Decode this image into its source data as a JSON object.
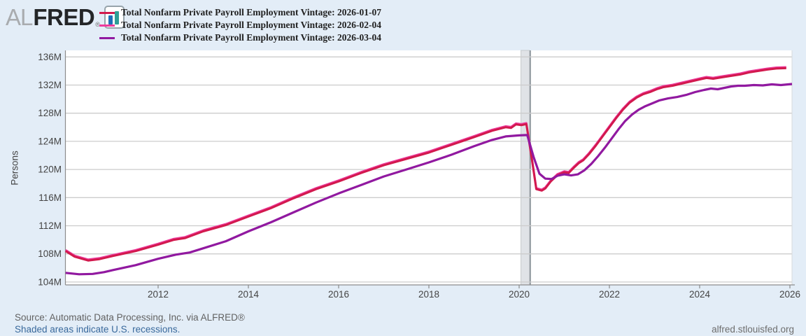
{
  "logo": {
    "al": "AL",
    "fred": "FRED",
    "registered": "®"
  },
  "legend": [
    {
      "label": "Total Nonfarm Private Payroll Employment Vintage: 2026-01-07",
      "color": "#d2194d"
    },
    {
      "label": "Total Nonfarm Private Payroll Employment Vintage: 2026-02-04",
      "color": "#ee3a9c"
    },
    {
      "label": "Total Nonfarm Private Payroll Employment Vintage: 2026-03-04",
      "color": "#9119a0"
    }
  ],
  "footer": {
    "source": "Source: Automatic Data Processing, Inc. via ALFRED®",
    "recession_note": "Shaded areas indicate U.S. recessions.",
    "site": "alfred.stlouisfed.org"
  },
  "colors": {
    "background": "#e3edf7",
    "plot_background": "#ffffff",
    "gridline": "#cccccc",
    "axis": "#8c8c8c",
    "tick_text": "#444444",
    "recession_fill": "#e0e3e7",
    "recession_edge": "#90989e"
  },
  "chart_data": {
    "type": "line",
    "title": "",
    "ylabel": "Persons",
    "xlabel": "",
    "ylim": [
      104,
      136
    ],
    "xlim": [
      2009.95,
      2026.05
    ],
    "grid": "horizontal",
    "legend_position": "top",
    "x_ticks": [
      2012,
      2014,
      2016,
      2018,
      2020,
      2022,
      2024,
      2026
    ],
    "y_ticks": [
      {
        "value": 104,
        "label": "104M"
      },
      {
        "value": 108,
        "label": "108M"
      },
      {
        "value": 112,
        "label": "112M"
      },
      {
        "value": 116,
        "label": "116M"
      },
      {
        "value": 120,
        "label": "120M"
      },
      {
        "value": 124,
        "label": "124M"
      },
      {
        "value": 128,
        "label": "128M"
      },
      {
        "value": 132,
        "label": "132M"
      },
      {
        "value": 136,
        "label": "136M"
      }
    ],
    "recessions": [
      {
        "start": 2020.04,
        "end": 2020.23
      }
    ],
    "series": [
      {
        "name": "Total Nonfarm Private Payroll Employment Vintage: 2026-01-07",
        "color": "#d2194d",
        "unit": "millions of persons",
        "points": [
          [
            2009.95,
            108.4
          ],
          [
            2010.15,
            107.6
          ],
          [
            2010.45,
            107.05
          ],
          [
            2010.7,
            107.25
          ],
          [
            2011.0,
            107.7
          ],
          [
            2011.5,
            108.4
          ],
          [
            2012.0,
            109.3
          ],
          [
            2012.35,
            110.0
          ],
          [
            2012.6,
            110.25
          ],
          [
            2013.0,
            111.2
          ],
          [
            2013.5,
            112.1
          ],
          [
            2014.0,
            113.3
          ],
          [
            2014.5,
            114.5
          ],
          [
            2015.0,
            115.9
          ],
          [
            2015.5,
            117.2
          ],
          [
            2016.0,
            118.3
          ],
          [
            2016.5,
            119.5
          ],
          [
            2017.0,
            120.6
          ],
          [
            2017.5,
            121.5
          ],
          [
            2018.0,
            122.4
          ],
          [
            2018.5,
            123.5
          ],
          [
            2019.0,
            124.6
          ],
          [
            2019.4,
            125.5
          ],
          [
            2019.7,
            126.0
          ],
          [
            2019.82,
            125.9
          ],
          [
            2019.93,
            126.4
          ],
          [
            2020.05,
            126.3
          ],
          [
            2020.16,
            126.45
          ],
          [
            2020.28,
            121.5
          ],
          [
            2020.38,
            117.2
          ],
          [
            2020.5,
            117.0
          ],
          [
            2020.58,
            117.3
          ],
          [
            2020.7,
            118.3
          ],
          [
            2020.85,
            119.2
          ],
          [
            2021.0,
            119.6
          ],
          [
            2021.1,
            119.5
          ],
          [
            2021.22,
            120.3
          ],
          [
            2021.32,
            120.9
          ],
          [
            2021.42,
            121.3
          ],
          [
            2021.55,
            122.2
          ],
          [
            2021.7,
            123.4
          ],
          [
            2021.85,
            124.7
          ],
          [
            2022.0,
            126.0
          ],
          [
            2022.15,
            127.3
          ],
          [
            2022.3,
            128.5
          ],
          [
            2022.45,
            129.5
          ],
          [
            2022.6,
            130.2
          ],
          [
            2022.75,
            130.7
          ],
          [
            2022.9,
            131.0
          ],
          [
            2023.05,
            131.4
          ],
          [
            2023.2,
            131.7
          ],
          [
            2023.4,
            131.9
          ],
          [
            2023.6,
            132.2
          ],
          [
            2023.8,
            132.5
          ],
          [
            2024.0,
            132.8
          ],
          [
            2024.15,
            133.0
          ],
          [
            2024.3,
            132.9
          ],
          [
            2024.5,
            133.1
          ],
          [
            2024.7,
            133.3
          ],
          [
            2024.9,
            133.5
          ],
          [
            2025.1,
            133.8
          ],
          [
            2025.3,
            134.0
          ],
          [
            2025.5,
            134.2
          ],
          [
            2025.7,
            134.35
          ],
          [
            2025.92,
            134.4
          ]
        ]
      },
      {
        "name": "Total Nonfarm Private Payroll Employment Vintage: 2026-02-04",
        "color": "#ee3a9c",
        "unit": "millions of persons",
        "overlaps_series": 0,
        "points": [
          [
            2009.95,
            108.4
          ],
          [
            2010.15,
            107.6
          ],
          [
            2010.45,
            107.05
          ],
          [
            2010.7,
            107.25
          ],
          [
            2011.0,
            107.7
          ],
          [
            2011.5,
            108.4
          ],
          [
            2012.0,
            109.3
          ],
          [
            2012.35,
            110.0
          ],
          [
            2012.6,
            110.25
          ],
          [
            2013.0,
            111.2
          ],
          [
            2013.5,
            112.1
          ],
          [
            2014.0,
            113.3
          ],
          [
            2014.5,
            114.5
          ],
          [
            2015.0,
            115.9
          ],
          [
            2015.5,
            117.2
          ],
          [
            2016.0,
            118.3
          ],
          [
            2016.5,
            119.5
          ],
          [
            2017.0,
            120.6
          ],
          [
            2017.5,
            121.5
          ],
          [
            2018.0,
            122.4
          ],
          [
            2018.5,
            123.5
          ],
          [
            2019.0,
            124.6
          ],
          [
            2019.4,
            125.5
          ],
          [
            2019.7,
            126.0
          ],
          [
            2019.82,
            125.9
          ],
          [
            2019.93,
            126.4
          ],
          [
            2020.05,
            126.3
          ],
          [
            2020.16,
            126.45
          ],
          [
            2020.28,
            121.5
          ],
          [
            2020.38,
            117.2
          ],
          [
            2020.5,
            117.0
          ],
          [
            2020.58,
            117.3
          ],
          [
            2020.7,
            118.3
          ],
          [
            2020.85,
            119.2
          ],
          [
            2021.0,
            119.6
          ],
          [
            2021.1,
            119.5
          ],
          [
            2021.22,
            120.3
          ],
          [
            2021.32,
            120.9
          ],
          [
            2021.42,
            121.3
          ],
          [
            2021.55,
            122.2
          ],
          [
            2021.7,
            123.4
          ],
          [
            2021.85,
            124.7
          ],
          [
            2022.0,
            126.0
          ],
          [
            2022.15,
            127.3
          ],
          [
            2022.3,
            128.5
          ],
          [
            2022.45,
            129.5
          ],
          [
            2022.6,
            130.2
          ],
          [
            2022.75,
            130.7
          ],
          [
            2022.9,
            131.0
          ],
          [
            2023.05,
            131.4
          ],
          [
            2023.2,
            131.7
          ],
          [
            2023.4,
            131.9
          ],
          [
            2023.6,
            132.2
          ],
          [
            2023.8,
            132.5
          ],
          [
            2024.0,
            132.8
          ],
          [
            2024.15,
            133.0
          ],
          [
            2024.3,
            132.9
          ],
          [
            2024.5,
            133.1
          ],
          [
            2024.7,
            133.3
          ],
          [
            2024.9,
            133.5
          ],
          [
            2025.1,
            133.8
          ],
          [
            2025.3,
            134.0
          ],
          [
            2025.5,
            134.2
          ],
          [
            2025.7,
            134.35
          ],
          [
            2025.92,
            134.4
          ]
        ]
      },
      {
        "name": "Total Nonfarm Private Payroll Employment Vintage: 2026-03-04",
        "color": "#9119a0",
        "unit": "millions of persons",
        "points": [
          [
            2009.95,
            105.3
          ],
          [
            2010.25,
            105.1
          ],
          [
            2010.55,
            105.15
          ],
          [
            2010.8,
            105.4
          ],
          [
            2011.0,
            105.7
          ],
          [
            2011.5,
            106.4
          ],
          [
            2012.0,
            107.3
          ],
          [
            2012.4,
            107.9
          ],
          [
            2012.7,
            108.2
          ],
          [
            2013.0,
            108.8
          ],
          [
            2013.5,
            109.8
          ],
          [
            2014.0,
            111.2
          ],
          [
            2014.5,
            112.5
          ],
          [
            2015.0,
            113.9
          ],
          [
            2015.5,
            115.3
          ],
          [
            2016.0,
            116.6
          ],
          [
            2016.5,
            117.8
          ],
          [
            2017.0,
            119.0
          ],
          [
            2017.5,
            120.0
          ],
          [
            2018.0,
            121.0
          ],
          [
            2018.5,
            122.1
          ],
          [
            2019.0,
            123.3
          ],
          [
            2019.4,
            124.2
          ],
          [
            2019.7,
            124.7
          ],
          [
            2020.0,
            124.85
          ],
          [
            2020.18,
            124.9
          ],
          [
            2020.32,
            121.8
          ],
          [
            2020.45,
            119.4
          ],
          [
            2020.58,
            118.7
          ],
          [
            2020.72,
            118.65
          ],
          [
            2020.85,
            119.1
          ],
          [
            2021.0,
            119.3
          ],
          [
            2021.15,
            119.15
          ],
          [
            2021.3,
            119.3
          ],
          [
            2021.45,
            119.9
          ],
          [
            2021.6,
            120.8
          ],
          [
            2021.75,
            121.9
          ],
          [
            2021.9,
            123.1
          ],
          [
            2022.05,
            124.4
          ],
          [
            2022.2,
            125.7
          ],
          [
            2022.35,
            126.9
          ],
          [
            2022.5,
            127.8
          ],
          [
            2022.65,
            128.5
          ],
          [
            2022.8,
            129.0
          ],
          [
            2022.95,
            129.4
          ],
          [
            2023.1,
            129.8
          ],
          [
            2023.3,
            130.1
          ],
          [
            2023.5,
            130.3
          ],
          [
            2023.7,
            130.6
          ],
          [
            2023.9,
            131.0
          ],
          [
            2024.1,
            131.3
          ],
          [
            2024.25,
            131.5
          ],
          [
            2024.4,
            131.4
          ],
          [
            2024.55,
            131.6
          ],
          [
            2024.7,
            131.8
          ],
          [
            2024.85,
            131.9
          ],
          [
            2025.0,
            131.9
          ],
          [
            2025.2,
            132.0
          ],
          [
            2025.4,
            131.95
          ],
          [
            2025.6,
            132.1
          ],
          [
            2025.8,
            132.0
          ],
          [
            2026.05,
            132.15
          ]
        ]
      }
    ]
  }
}
